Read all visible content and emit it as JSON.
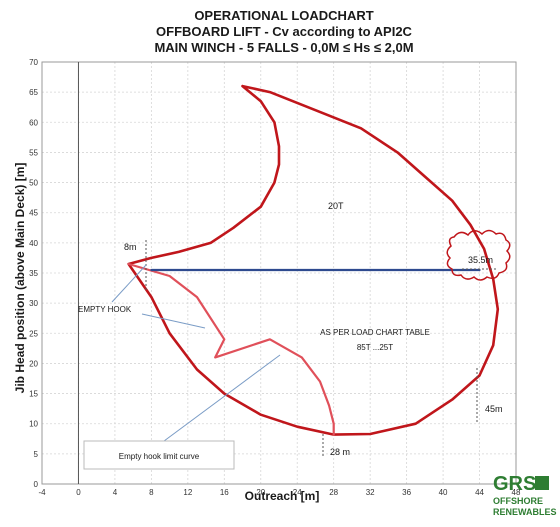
{
  "chart_data": {
    "type": "line",
    "title_lines": [
      "OPERATIONAL LOADCHART",
      "OFFBOARD LIFT - Cv according to API2C",
      "MAIN WINCH - 5 FALLS -  0,0M ≤ Hs ≤ 2,0M"
    ],
    "xlabel": "Outreach [m]",
    "ylabel": "Jib Head position (above Main Deck) [m]",
    "xlim": [
      -4,
      48
    ],
    "ylim": [
      0,
      70
    ],
    "xticks": [
      -4,
      0,
      4,
      8,
      12,
      16,
      20,
      24,
      28,
      32,
      36,
      40,
      44,
      48
    ],
    "yticks": [
      0,
      5,
      10,
      15,
      20,
      25,
      30,
      35,
      40,
      45,
      50,
      55,
      60,
      65,
      70
    ],
    "grid": true,
    "series": [
      {
        "name": "",
        "color": "#c0161b",
        "points": [
          [
            18,
            66
          ],
          [
            21,
            65
          ],
          [
            26,
            62
          ],
          [
            31,
            59
          ],
          [
            35,
            55
          ],
          [
            38,
            51
          ],
          [
            41,
            47
          ],
          [
            43,
            43
          ],
          [
            44.5,
            39
          ],
          [
            45.5,
            34
          ],
          [
            46,
            29
          ],
          [
            45.5,
            23
          ],
          [
            44,
            18
          ],
          [
            41,
            14
          ],
          [
            37,
            10
          ],
          [
            32,
            8.3
          ],
          [
            28,
            8.2
          ],
          [
            24,
            9.5
          ],
          [
            20,
            11.5
          ],
          [
            16,
            15
          ],
          [
            13,
            19
          ],
          [
            10,
            25
          ],
          [
            8,
            31
          ],
          [
            5.5,
            36.5
          ],
          [
            8,
            37.5
          ],
          [
            11,
            38.5
          ],
          [
            14.5,
            40
          ],
          [
            17,
            42.5
          ],
          [
            20,
            46
          ],
          [
            21.5,
            50
          ],
          [
            22,
            53
          ],
          [
            22,
            56
          ],
          [
            21.5,
            60
          ],
          [
            20,
            63.5
          ],
          [
            18,
            66
          ]
        ]
      },
      {
        "name": "",
        "color": "#e0505a",
        "points": [
          [
            5.5,
            36.5
          ],
          [
            10,
            34.5
          ],
          [
            13,
            31
          ],
          [
            16,
            24
          ],
          [
            15,
            21
          ],
          [
            21,
            24
          ],
          [
            24.5,
            21
          ],
          [
            26.5,
            17
          ],
          [
            27.5,
            13
          ],
          [
            28,
            10
          ],
          [
            28,
            8.2
          ]
        ]
      },
      {
        "name": "",
        "color": "#2e4a8f",
        "points": [
          [
            8,
            35.5
          ],
          [
            44,
            35.5
          ]
        ]
      }
    ],
    "annotations": [
      "8m",
      "20T",
      "35.5m",
      "EMPTY HOOK",
      "AS PER LOAD CHART TABLE",
      "85T ...25T",
      "45m",
      "28 m",
      "Empty hook limit curve"
    ]
  },
  "logo": {
    "primary": "GRS",
    "line1": "OFFSHORE",
    "line2": "RENEWABLES"
  }
}
